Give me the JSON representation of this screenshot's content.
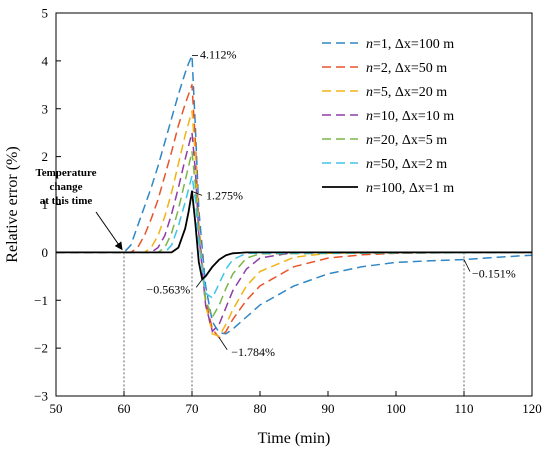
{
  "chart_data": {
    "type": "line",
    "title": "",
    "xlabel": "Time (min)",
    "ylabel": "Relative error (%)",
    "xlim": [
      50,
      120
    ],
    "ylim": [
      -3,
      5
    ],
    "xticks": [
      50,
      60,
      70,
      80,
      90,
      100,
      110,
      120
    ],
    "yticks": [
      -3,
      -2,
      -1,
      0,
      1,
      2,
      3,
      4,
      5
    ],
    "grid": false,
    "legend_position": "top-right",
    "series": [
      {
        "name": "n=1, Δx=100 m",
        "name_italic": "n",
        "name_rest": "=1, Δx=100 m",
        "color": "#2F86C4",
        "dash": "dashed",
        "x": [
          50,
          60,
          61,
          62,
          63,
          64,
          65,
          66,
          67,
          68,
          69,
          69.5,
          70,
          70.5,
          71,
          72,
          73,
          74,
          75,
          76,
          78,
          80,
          85,
          90,
          95,
          100,
          105,
          110,
          115,
          120
        ],
        "y": [
          0,
          0,
          0.15,
          0.55,
          0.95,
          1.35,
          1.8,
          2.3,
          2.8,
          3.3,
          3.75,
          3.95,
          4.112,
          2.6,
          0.9,
          -0.7,
          -1.45,
          -1.68,
          -1.7,
          -1.6,
          -1.35,
          -1.1,
          -0.7,
          -0.45,
          -0.3,
          -0.21,
          -0.175,
          -0.151,
          -0.1,
          -0.06
        ]
      },
      {
        "name": "n=2, Δx=50 m",
        "name_italic": "n",
        "name_rest": "=2, Δx=50 m",
        "color": "#E8542A",
        "dash": "dashed",
        "x": [
          50,
          61,
          62,
          63,
          64,
          65,
          66,
          67,
          68,
          69,
          70,
          70.5,
          71,
          72,
          73,
          74,
          75,
          76,
          78,
          80,
          85,
          90,
          95,
          100,
          110,
          120
        ],
        "y": [
          0,
          0,
          0.1,
          0.35,
          0.7,
          1.1,
          1.6,
          2.1,
          2.65,
          3.1,
          3.5,
          2.3,
          0.6,
          -1.0,
          -1.6,
          -1.784,
          -1.65,
          -1.4,
          -1.0,
          -0.7,
          -0.3,
          -0.12,
          -0.05,
          -0.02,
          0,
          0
        ]
      },
      {
        "name": "n=5, Δx=20 m",
        "name_italic": "n",
        "name_rest": "=5, Δx=20 m",
        "color": "#F2B318",
        "dash": "dashed",
        "x": [
          50,
          63,
          64,
          65,
          66,
          67,
          68,
          69,
          70,
          70.5,
          71,
          72,
          73,
          74,
          75,
          76,
          78,
          80,
          85,
          90,
          100,
          120
        ],
        "y": [
          0,
          0,
          0.1,
          0.35,
          0.75,
          1.25,
          1.85,
          2.45,
          2.95,
          2.0,
          0.5,
          -1.1,
          -1.7,
          -1.75,
          -1.5,
          -1.2,
          -0.7,
          -0.4,
          -0.1,
          -0.02,
          0,
          0
        ]
      },
      {
        "name": "n=10, Δx=10 m",
        "name_italic": "n",
        "name_rest": "=10, Δx=10 m",
        "color": "#8E3CA6",
        "dash": "dashed",
        "x": [
          50,
          64,
          65,
          66,
          67,
          68,
          69,
          70,
          70.5,
          71,
          72,
          73,
          74,
          75,
          76,
          78,
          80,
          85,
          120
        ],
        "y": [
          0,
          0,
          0.1,
          0.35,
          0.8,
          1.35,
          1.95,
          2.5,
          1.7,
          0.4,
          -1.1,
          -1.65,
          -1.5,
          -1.15,
          -0.8,
          -0.35,
          -0.12,
          0,
          0
        ]
      },
      {
        "name": "n=20, Δx=5 m",
        "name_italic": "n",
        "name_rest": "=20, Δx=5 m",
        "color": "#7AB648",
        "dash": "dashed",
        "x": [
          50,
          65,
          66,
          67,
          68,
          69,
          70,
          70.5,
          71,
          72,
          73,
          74,
          75,
          76,
          78,
          80,
          120
        ],
        "y": [
          0,
          0,
          0.1,
          0.4,
          0.9,
          1.5,
          2.1,
          1.4,
          0.3,
          -1.0,
          -1.35,
          -1.1,
          -0.75,
          -0.45,
          -0.12,
          -0.03,
          0
        ]
      },
      {
        "name": "n=50, Δx=2 m",
        "name_italic": "n",
        "name_rest": "=50, Δx=2 m",
        "color": "#40C4E8",
        "dash": "dashed",
        "x": [
          50,
          66,
          67,
          68,
          69,
          70,
          70.5,
          71,
          72,
          73,
          74,
          75,
          76,
          78,
          120
        ],
        "y": [
          0,
          0,
          0.15,
          0.55,
          1.05,
          1.6,
          1.1,
          0.2,
          -0.85,
          -0.95,
          -0.65,
          -0.35,
          -0.15,
          -0.02,
          0
        ]
      },
      {
        "name": "n=100, Δx=1 m",
        "name_italic": "n",
        "name_rest": "=100, Δx=1 m",
        "color": "#000000",
        "dash": "solid",
        "x": [
          50,
          67,
          68,
          69,
          69.5,
          70,
          70.5,
          71,
          71.5,
          72,
          73,
          74,
          75,
          76,
          77,
          78,
          80,
          120
        ],
        "y": [
          0,
          0,
          0.1,
          0.5,
          0.85,
          1.275,
          0.6,
          -0.2,
          -0.563,
          -0.5,
          -0.3,
          -0.15,
          -0.06,
          -0.02,
          -0.01,
          0,
          0,
          0
        ]
      }
    ],
    "annotations": [
      {
        "text": "4.112%",
        "x": 70,
        "y": 4.112
      },
      {
        "text": "1.275%",
        "x": 70,
        "y": 1.275
      },
      {
        "text": "−0.563%",
        "x": 71.5,
        "y": -0.563
      },
      {
        "text": "−1.784%",
        "x": 74,
        "y": -1.784
      },
      {
        "text": "−0.151%",
        "x": 110,
        "y": -0.151
      }
    ],
    "callout_lines": [
      "Temperature",
      "change",
      "at this time"
    ],
    "callout_point": {
      "x": 60,
      "y": 0
    },
    "vlines": [
      60,
      70,
      110
    ]
  }
}
